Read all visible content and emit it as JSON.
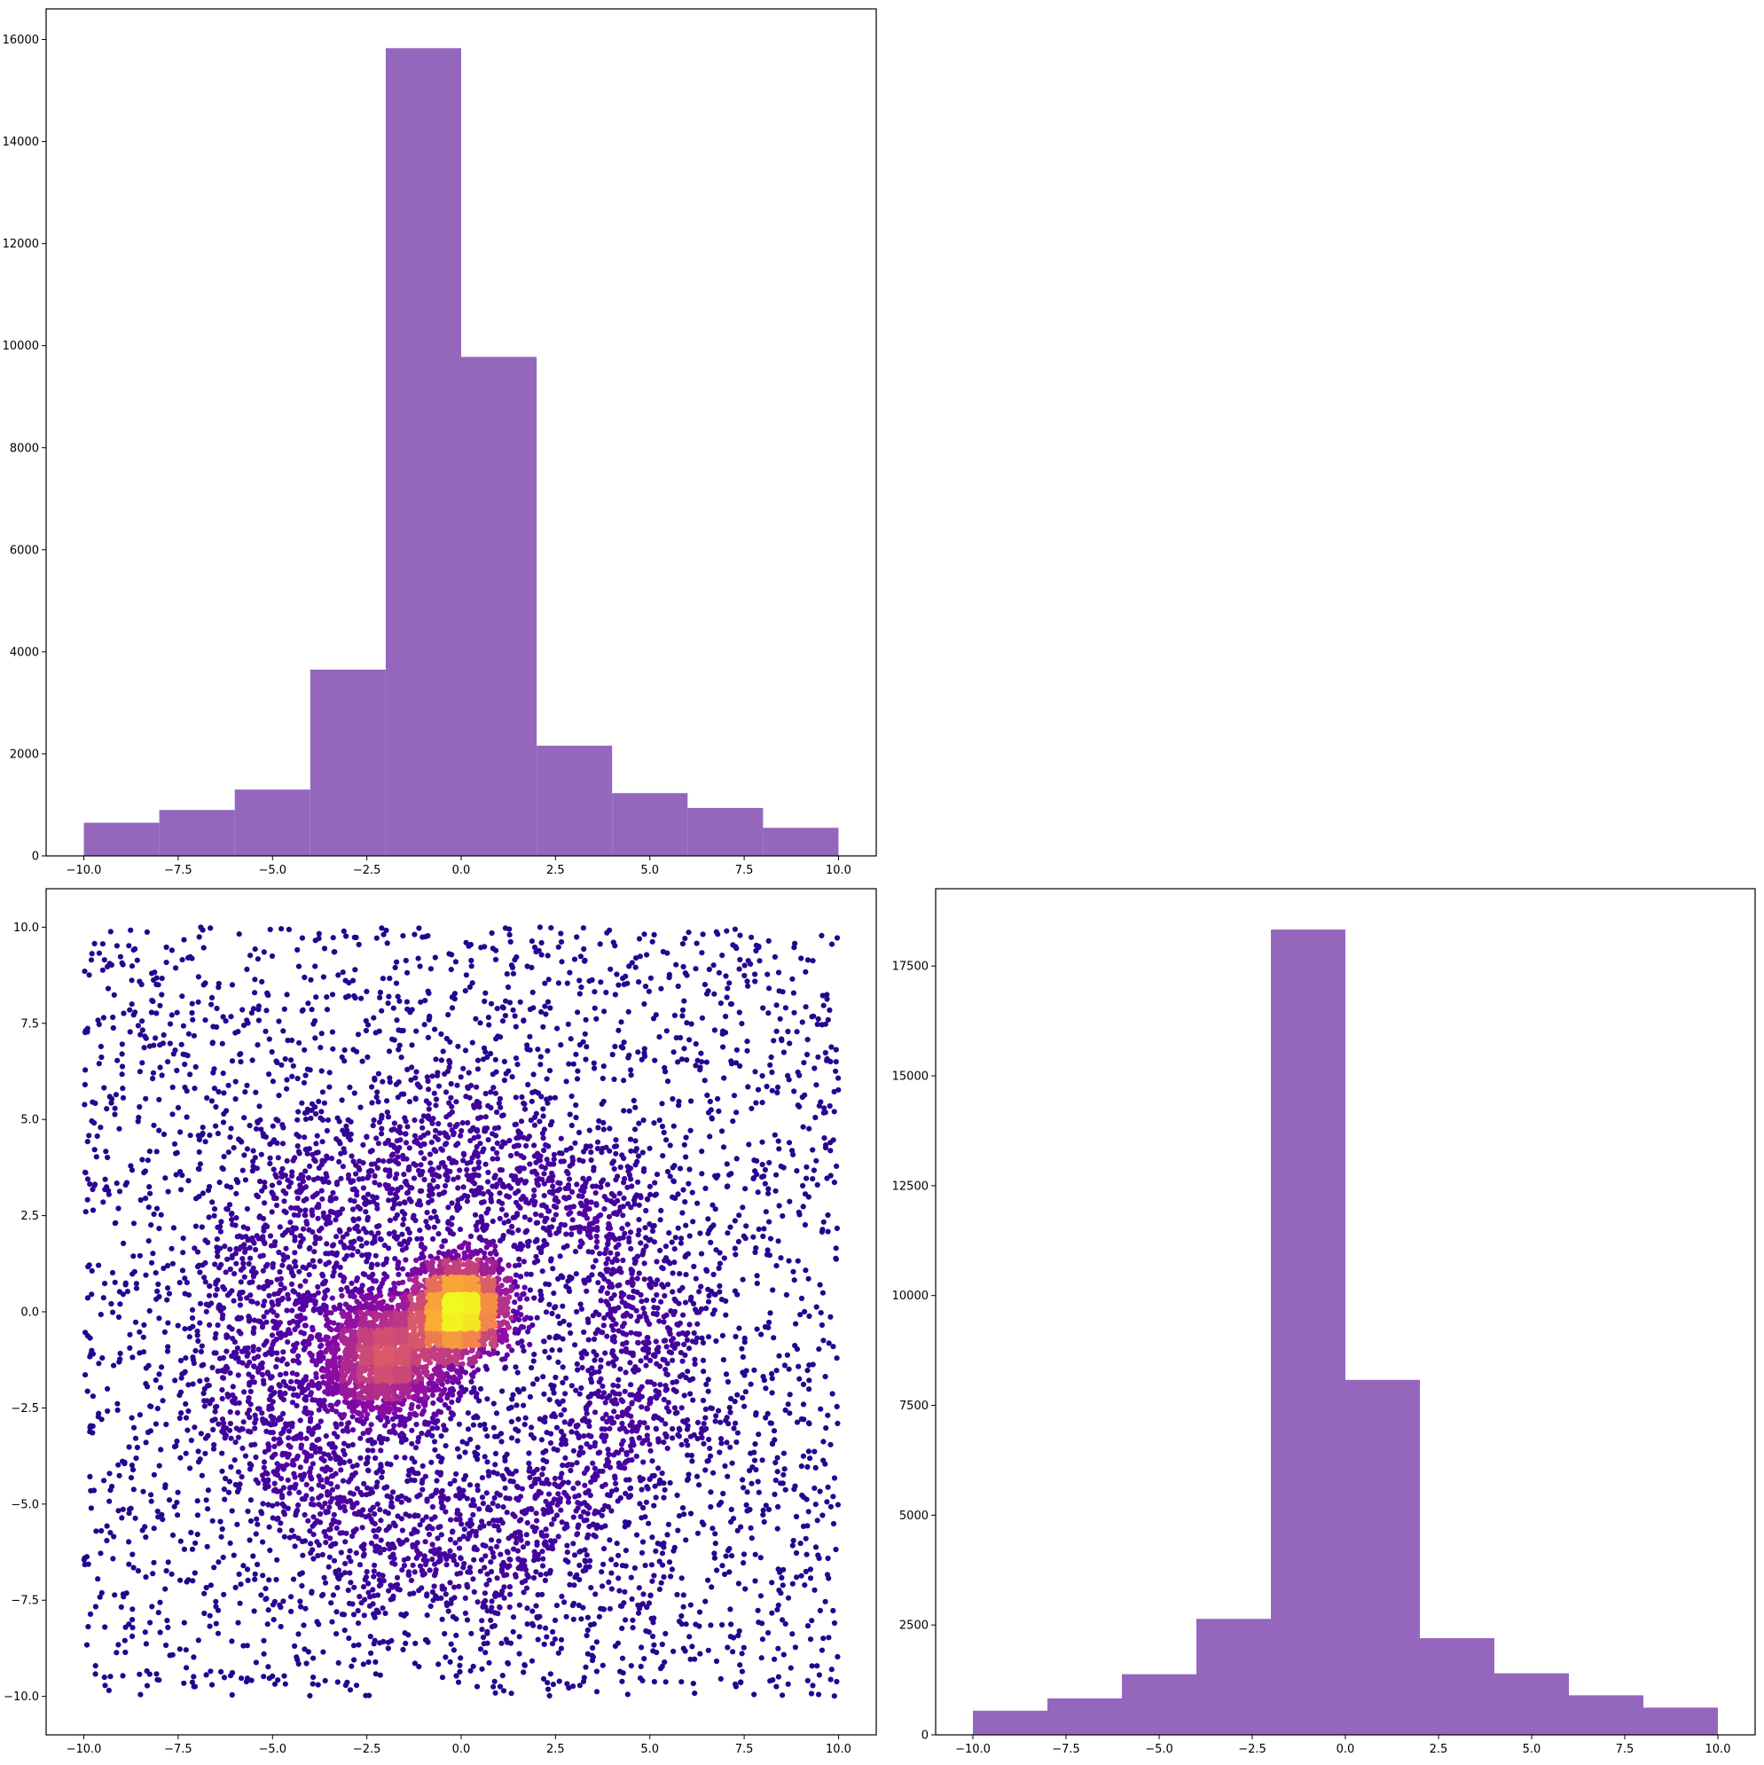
{
  "chart_data": [
    {
      "panel": "top-left",
      "type": "bar",
      "subtype": "histogram",
      "bin_edges": [
        -10,
        -8,
        -6,
        -4,
        -2,
        0,
        2,
        4,
        6,
        8,
        10
      ],
      "values": [
        650,
        900,
        1300,
        3650,
        15830,
        9780,
        2160,
        1230,
        940,
        550
      ],
      "bar_color": "#9467bd",
      "xlim": [
        -11,
        11
      ],
      "ylim": [
        0,
        16600
      ],
      "xticks": [
        -10,
        -7.5,
        -5,
        -2.5,
        0,
        2.5,
        5,
        7.5,
        10
      ],
      "xtick_labels": [
        "−10.0",
        "−7.5",
        "−5.0",
        "−2.5",
        "0.0",
        "2.5",
        "5.0",
        "7.5",
        "10.0"
      ],
      "yticks": [
        0,
        2000,
        4000,
        6000,
        8000,
        10000,
        12000,
        14000,
        16000
      ],
      "ytick_labels": [
        "0",
        "2000",
        "4000",
        "6000",
        "8000",
        "10000",
        "12000",
        "14000",
        "16000"
      ],
      "grid": false
    },
    {
      "panel": "bottom-left",
      "type": "scatter",
      "description_of_distribution": "uniform background over [-10,10]x[-10,10], a diffuse ring of radius ~5 around (0,-1), a dense cluster near (-2,-1) and a very dense core at (0,0); points colored by local density with the plasma colormap",
      "colormap": "plasma",
      "colormap_stops": [
        "#0d0887",
        "#5302a3",
        "#8b0aa5",
        "#b83289",
        "#db5c68",
        "#f48849",
        "#febc2a",
        "#f0f921"
      ],
      "components": [
        {
          "kind": "uniform",
          "x_range": [
            -10,
            10
          ],
          "y_range": [
            -10,
            10
          ],
          "n": 3300
        },
        {
          "kind": "ring",
          "center": [
            -0.3,
            -1
          ],
          "radius": 5.2,
          "spread": 1.2,
          "n": 2800
        },
        {
          "kind": "gaussian",
          "center": [
            -2,
            -1.2
          ],
          "sigma": 0.9,
          "n": 1700
        },
        {
          "kind": "gaussian",
          "center": [
            0,
            0.1
          ],
          "sigma": 0.6,
          "n": 2200
        }
      ],
      "xlim": [
        -11,
        11
      ],
      "ylim": [
        -11,
        11
      ],
      "xticks": [
        -10,
        -7.5,
        -5,
        -2.5,
        0,
        2.5,
        5,
        7.5,
        10
      ],
      "xtick_labels": [
        "−10.0",
        "−7.5",
        "−5.0",
        "−2.5",
        "0.0",
        "2.5",
        "5.0",
        "7.5",
        "10.0"
      ],
      "yticks": [
        -10,
        -7.5,
        -5,
        -2.5,
        0,
        2.5,
        5,
        7.5,
        10
      ],
      "ytick_labels": [
        "−10.0",
        "−7.5",
        "−5.0",
        "−2.5",
        "0.0",
        "2.5",
        "5.0",
        "7.5",
        "10.0"
      ],
      "grid": false
    },
    {
      "panel": "bottom-right",
      "type": "bar",
      "subtype": "histogram",
      "bin_edges": [
        -10,
        -8,
        -6,
        -4,
        -2,
        0,
        2,
        4,
        6,
        8,
        10
      ],
      "values": [
        550,
        830,
        1380,
        2640,
        18330,
        8080,
        2200,
        1400,
        900,
        620
      ],
      "bar_color": "#9467bd",
      "xlim": [
        -11,
        11
      ],
      "ylim": [
        0,
        19260
      ],
      "xticks": [
        -10,
        -7.5,
        -5,
        -2.5,
        0,
        2.5,
        5,
        7.5,
        10
      ],
      "xtick_labels": [
        "−10.0",
        "−7.5",
        "−5.0",
        "−2.5",
        "0.0",
        "2.5",
        "5.0",
        "7.5",
        "10.0"
      ],
      "yticks": [
        0,
        2500,
        5000,
        7500,
        10000,
        12500,
        15000,
        17500
      ],
      "ytick_labels": [
        "0",
        "2500",
        "5000",
        "7500",
        "10000",
        "12500",
        "15000",
        "17500"
      ],
      "grid": false
    }
  ]
}
